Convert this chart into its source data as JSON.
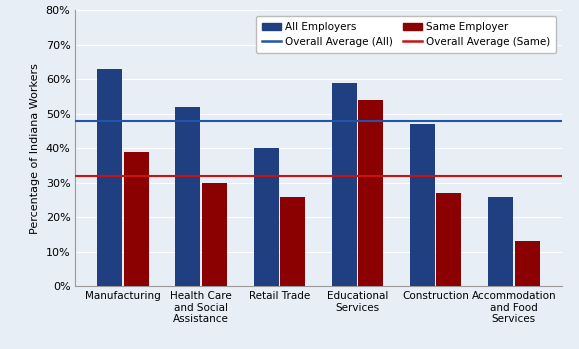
{
  "categories": [
    "Manufacturing",
    "Health Care\nand Social\nAssistance",
    "Retail Trade",
    "Educational\nServices",
    "Construction",
    "Accommodation\nand Food\nServices"
  ],
  "all_employers": [
    0.63,
    0.52,
    0.4,
    0.59,
    0.47,
    0.26
  ],
  "same_employer": [
    0.39,
    0.3,
    0.26,
    0.54,
    0.27,
    0.13
  ],
  "overall_avg_all": 0.48,
  "overall_avg_same": 0.32,
  "bar_color_all": "#1F3F80",
  "bar_color_same": "#8B0000",
  "line_color_all": "#2255AA",
  "line_color_same": "#CC1111",
  "background_color": "#E8EEF5",
  "ylabel": "Percentage of Indiana Workers",
  "ylim": [
    0,
    0.8
  ],
  "yticks": [
    0,
    0.1,
    0.2,
    0.3,
    0.4,
    0.5,
    0.6,
    0.7,
    0.8
  ],
  "legend_labels": [
    "All Employers",
    "Same Employer",
    "Overall Average (All)",
    "Overall Average (Same)"
  ]
}
